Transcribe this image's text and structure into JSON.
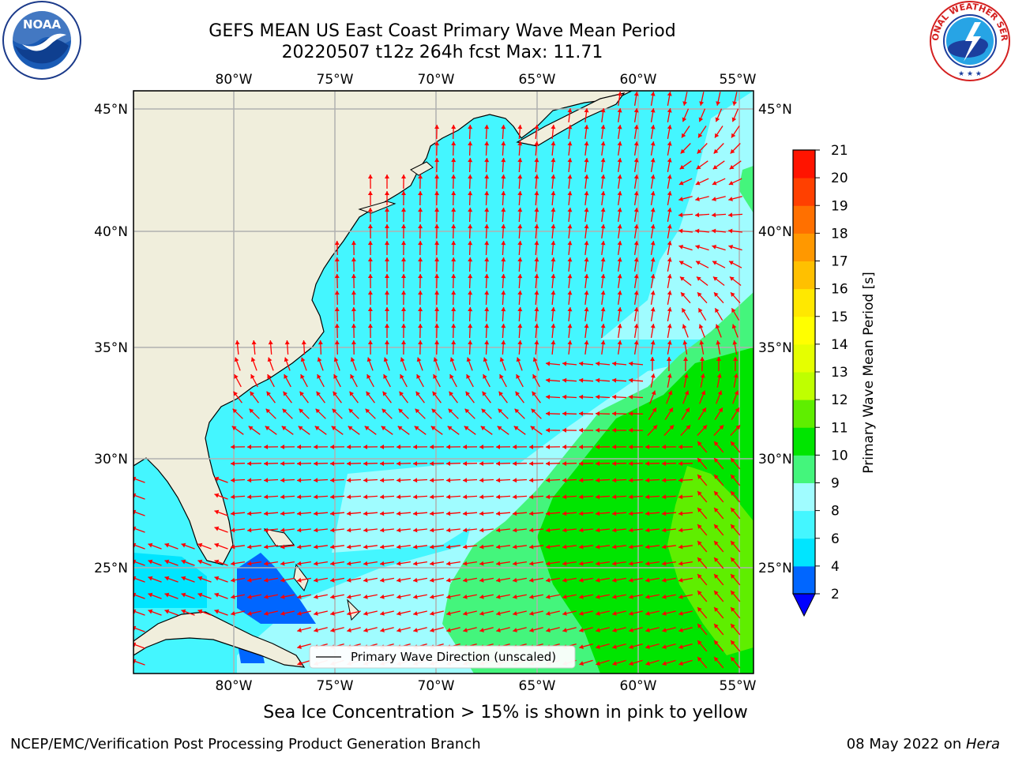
{
  "title": {
    "line1": "GEFS MEAN US East Coast Primary Wave Mean Period",
    "line2": "20220507 t12z 264h fcst   Max: 11.71"
  },
  "map": {
    "lon_labels": [
      "80°W",
      "75°W",
      "70°W",
      "65°W",
      "60°W",
      "55°W"
    ],
    "lat_labels": [
      "45°N",
      "40°N",
      "35°N",
      "30°N",
      "25°N"
    ],
    "lon_range": [
      -85,
      -54
    ],
    "lat_range": [
      20.5,
      46
    ],
    "legend_label": "Primary Wave Direction (unscaled)",
    "arrow_color": "#ff0000",
    "land_color": "#f0eedc",
    "grid_color": "#b0b0b0"
  },
  "colorbar": {
    "label": "Primary Wave Mean Period [s]",
    "ticks": [
      "2",
      "4",
      "6",
      "8",
      "9",
      "10",
      "11",
      "12",
      "13",
      "14",
      "15",
      "16",
      "17",
      "18",
      "19",
      "20",
      "21"
    ],
    "colors": [
      "#0066ff",
      "#00e5ff",
      "#44f6ff",
      "#a0fcff",
      "#44f57c",
      "#00e500",
      "#5fee00",
      "#bfff00",
      "#e5ff00",
      "#ffff00",
      "#ffe800",
      "#ffc000",
      "#ff9800",
      "#ff7000",
      "#ff4000",
      "#ff1400"
    ],
    "extend_color": "#0000ff"
  },
  "footer": {
    "ice_note": "Sea Ice Concentration > 15% is shown in pink to yellow",
    "left": "NCEP/EMC/Verification Post Processing Product Generation Branch",
    "right_date": "08 May 2022 on ",
    "right_machine": "Hera"
  },
  "logos": {
    "noaa_text": "NOAA",
    "nws_text": "NATIONAL WEATHER SERVICE"
  }
}
